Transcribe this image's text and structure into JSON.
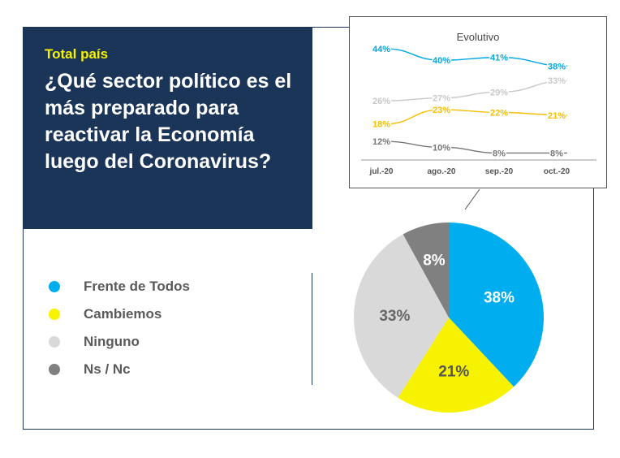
{
  "header": {
    "subtitle": "Total país",
    "title": "¿Qué sector político es el más preparado para reactivar la Economía luego del Coronavirus?"
  },
  "legend": [
    {
      "label": "Frente de Todos",
      "color": "#00aeef"
    },
    {
      "label": "Cambiemos",
      "color": "#f6f200"
    },
    {
      "label": "Ninguno",
      "color": "#d9d9d9"
    },
    {
      "label": "Ns / Nc",
      "color": "#808080"
    }
  ],
  "chart_data": [
    {
      "type": "pie",
      "title": "",
      "slices": [
        {
          "label": "Frente de Todos",
          "value": 38,
          "display": "38%",
          "color": "#00aeef",
          "label_color": "#ffffff"
        },
        {
          "label": "Cambiemos",
          "value": 21,
          "display": "21%",
          "color": "#f6f200",
          "label_color": "#555555"
        },
        {
          "label": "Ninguno",
          "value": 33,
          "display": "33%",
          "color": "#d9d9d9",
          "label_color": "#666666"
        },
        {
          "label": "Ns / Nc",
          "value": 8,
          "display": "8%",
          "color": "#808080",
          "label_color": "#ffffff"
        }
      ]
    },
    {
      "type": "line",
      "title": "Evolutivo",
      "categories": [
        "jul.-20",
        "ago.-20",
        "sep.-20",
        "oct.-20"
      ],
      "ylim": [
        0,
        50
      ],
      "grid": false,
      "series": [
        {
          "name": "Frente de Todos",
          "color": "#00a7e1",
          "values": [
            44,
            40,
            41,
            38
          ],
          "labels": [
            "44%",
            "40%",
            "41%",
            "38%"
          ]
        },
        {
          "name": "Ninguno",
          "color": "#c8c8c8",
          "values": [
            26,
            27,
            29,
            33
          ],
          "labels": [
            "26%",
            "27%",
            "29%",
            "33%"
          ]
        },
        {
          "name": "Cambiemos",
          "color": "#f3bd00",
          "values": [
            18,
            23,
            22,
            21
          ],
          "labels": [
            "18%",
            "23%",
            "22%",
            "21%"
          ]
        },
        {
          "name": "Ns / Nc",
          "color": "#777777",
          "values": [
            12,
            10,
            8,
            8
          ],
          "labels": [
            "12%",
            "10%",
            "8%",
            "8%"
          ]
        }
      ]
    }
  ]
}
